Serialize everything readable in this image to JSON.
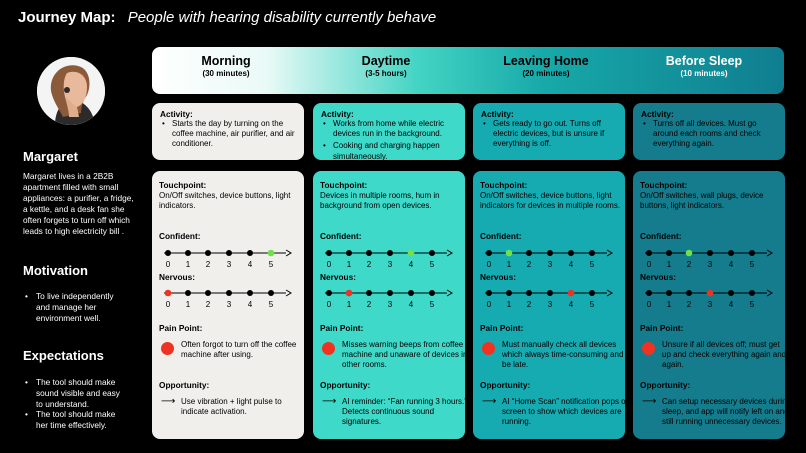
{
  "header": {
    "label": "Journey Map:",
    "subtitle": "People with hearing disability currently behave"
  },
  "persona": {
    "name": "Margaret",
    "bio": "Margaret lives in a 2B2B apartment filled with small appliances: a purifier, a fridge, a kettle, and a desk fan she often forgets to turn off which leads to high electricity bill .",
    "motivation_title": "Motivation",
    "motivation": [
      "To live independently and manage her environment well."
    ],
    "expectations_title": "Expectations",
    "expectations": [
      "The tool should make sound visible and easy to understand.",
      "The tool should make her time effectively."
    ]
  },
  "labels": {
    "activity": "Activity:",
    "touchpoint": "Touchpoint:",
    "confident": "Confident:",
    "nervous": "Nervous:",
    "pain": "Pain Point:",
    "opportunity": "Opportunity:",
    "arrow": "⟶"
  },
  "scale_ticks": [
    "0",
    "1",
    "2",
    "3",
    "4",
    "5"
  ],
  "colors": {
    "dot_default": "#000000",
    "confident_mark": "#6ee24a",
    "nervous_mark": "#ee3322",
    "pain_dot": "#ee3322"
  },
  "phases": [
    {
      "name": "Morning",
      "time": "(30 minutes)",
      "activity": [
        "Starts the day by turning on the coffee machine, air purifier, and air conditioner."
      ],
      "touchpoint": "On/Off switches, device buttons, light indicators.",
      "confident": 5,
      "nervous": 0,
      "pain": "Often forgot to turn off the coffee machine after using.",
      "opportunity": "Use vibration + light pulse to indicate activation."
    },
    {
      "name": "Daytime",
      "time": "(3-5 hours)",
      "activity": [
        "Works from home while electric devices run in the background.",
        "Cooking and charging happen simultaneously."
      ],
      "touchpoint": "Devices in multiple rooms, hum in background from open devices.",
      "confident": 4,
      "nervous": 1,
      "pain": "Misses warning beeps from coffee machine and unaware of devices in other rooms.",
      "opportunity": "AI reminder: “Fan running 3 hours.” Detects continuous sound signatures."
    },
    {
      "name": "Leaving Home",
      "time": "(20 minutes)",
      "activity": [
        "Gets ready to go out. Turns off electric devices, but is unsure if everything is off."
      ],
      "touchpoint": "On/Off switches, device buttons, light indicators for devices in multiple rooms.",
      "confident": 1,
      "nervous": 4,
      "pain": "Must manually check all devices which always time-consuming and be late.",
      "opportunity": "AI “Home Scan” notification pops on screen to show which devices are running."
    },
    {
      "name": "Before Sleep",
      "time": "(10 minutes)",
      "activity": [
        "Turns off all devices. Must go around each rooms and check everything again."
      ],
      "touchpoint": "On/Off  switches, wall plugs, device buttons, light indicators.",
      "confident": 2,
      "nervous": 3,
      "pain": "Unsure if all devices off; must get up and check everything again and again.",
      "opportunity": "Can setup necessary devices during sleep, and app will notify left on and still running unnecessary devices."
    }
  ]
}
